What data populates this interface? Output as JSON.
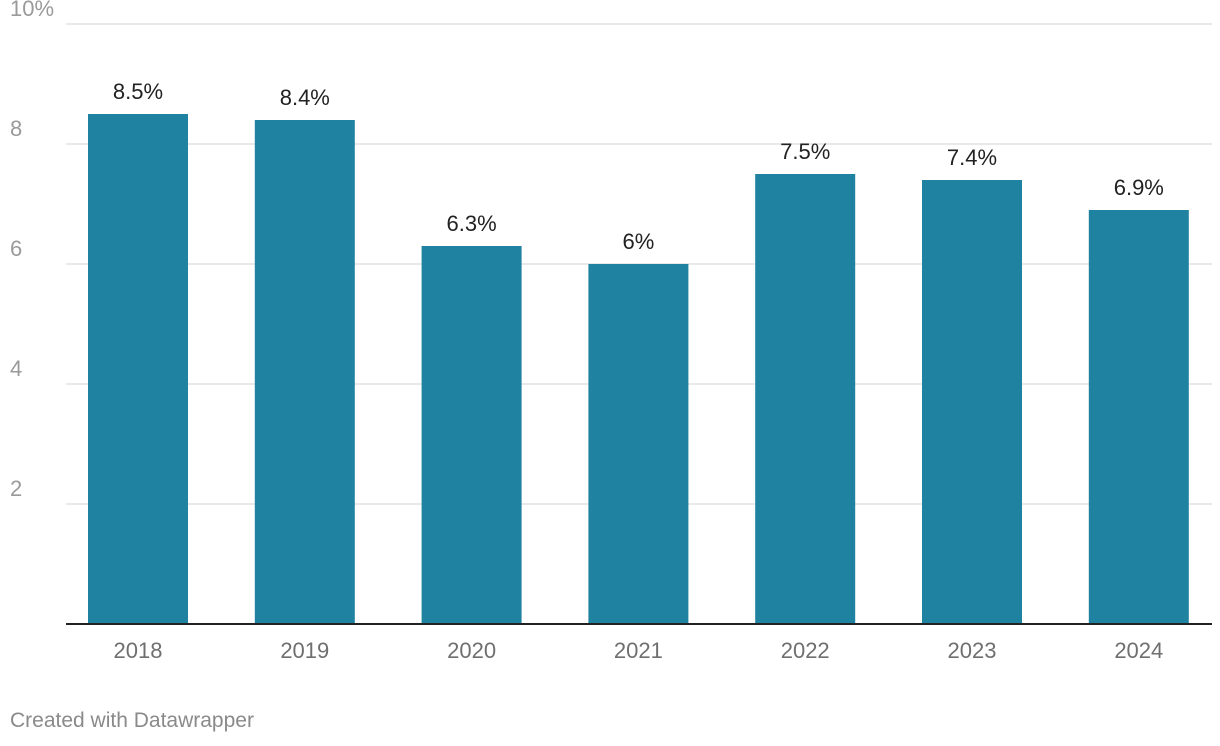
{
  "chart_data": {
    "type": "bar",
    "categories": [
      "2018",
      "2019",
      "2020",
      "2021",
      "2022",
      "2023",
      "2024"
    ],
    "values": [
      8.5,
      8.4,
      6.3,
      6.0,
      7.5,
      7.4,
      6.9
    ],
    "data_labels": [
      "8.5%",
      "8.4%",
      "6.3%",
      "6%",
      "7.5%",
      "7.4%",
      "6.9%"
    ],
    "title": "",
    "xlabel": "",
    "ylabel": "",
    "ylim": [
      0,
      10
    ],
    "y_ticks": [
      2,
      4,
      6,
      8,
      10
    ],
    "y_tick_labels": [
      "2",
      "4",
      "6",
      "8",
      "10%"
    ],
    "grid": true,
    "bar_color": "#1f82a1"
  },
  "credit": "Created with Datawrapper"
}
